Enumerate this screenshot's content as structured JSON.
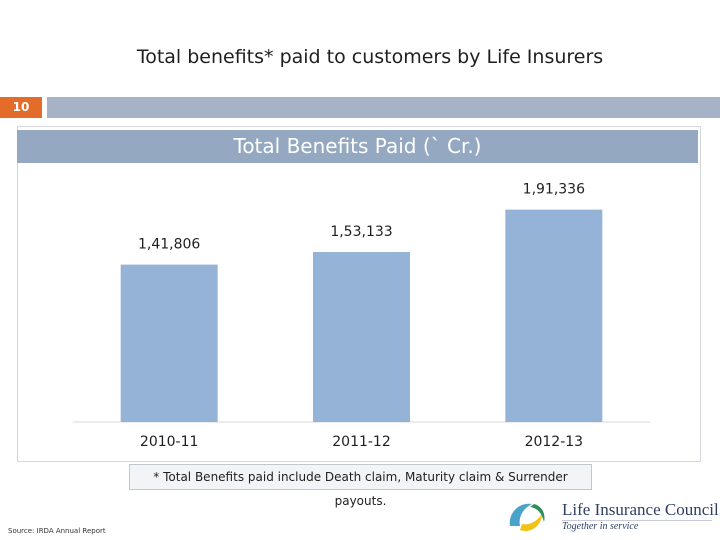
{
  "slide": {
    "title": "Total benefits* paid to customers by Life Insurers",
    "number": "10",
    "footnote": "* Total Benefits paid include Death claim, Maturity claim & Surrender payouts.",
    "source": "Source: IRDA Annual Report"
  },
  "logo": {
    "name": "Life Insurance Council",
    "tagline": "Together in service"
  },
  "chart_data": {
    "type": "bar",
    "title": "Total Benefits Paid (` Cr.)",
    "categories": [
      "2010-11",
      "2011-12",
      "2012-13"
    ],
    "values": [
      141806,
      153133,
      191336
    ],
    "data_labels": [
      "1,41,806",
      "1,53,133",
      "1,91,336"
    ],
    "color": "#95b3d7",
    "ylim": [
      0,
      200000
    ],
    "grid": false,
    "legend": "none"
  }
}
